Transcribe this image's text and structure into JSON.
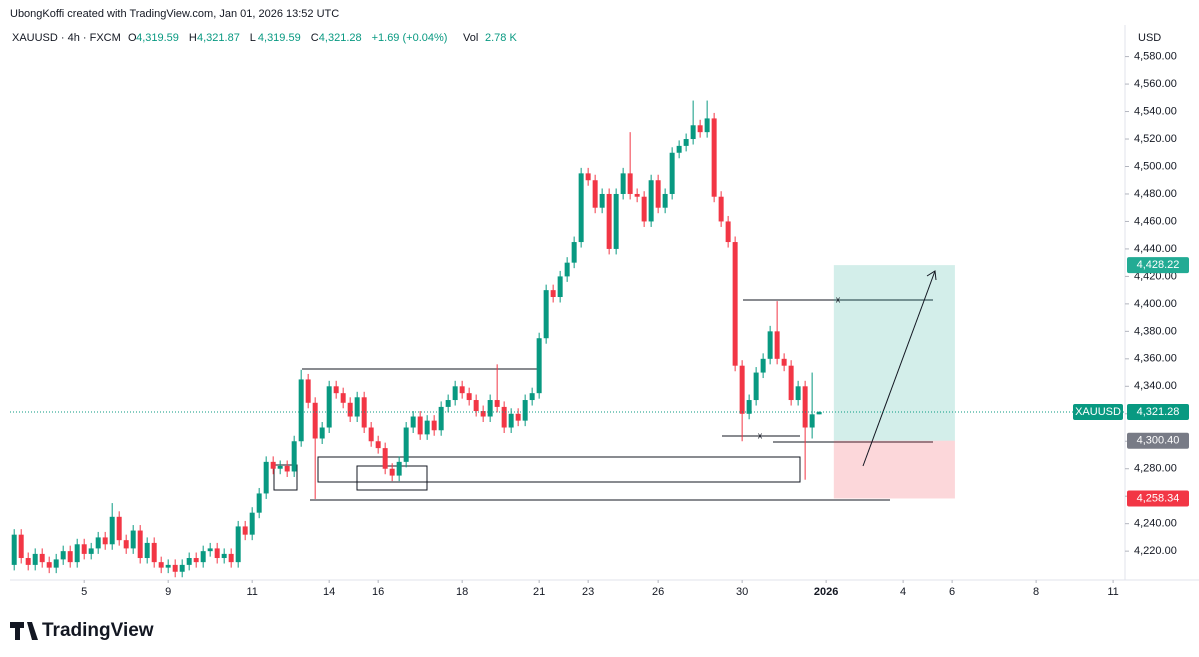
{
  "header": {
    "credit": "UbongKoffi created with TradingView.com, Jan 01, 2026 13:52 UTC",
    "symbol": "XAUUSD · 4h · FXCM",
    "fields": [
      {
        "key": "O",
        "value": "4,319.59"
      },
      {
        "key": "H",
        "value": "4,321.87"
      },
      {
        "key": "L",
        "value": "4,319.59"
      },
      {
        "key": "C",
        "value": "4,321.28"
      }
    ],
    "change": "+1.69 (+0.04%)",
    "vol_key": "Vol",
    "vol": "2.78 K",
    "currency": "USD"
  },
  "footer": {
    "brand": "TradingView"
  },
  "chart_data": {
    "type": "candlestick",
    "up_color": "#089981",
    "down_color": "#f23645",
    "xlim": [
      -0.6,
      158.7
    ],
    "ylim": [
      4199,
      4603
    ],
    "yticks": [
      {
        "value": 4220,
        "label": "4,220.00"
      },
      {
        "value": 4240,
        "label": "4,240.00"
      },
      {
        "value": 4260,
        "label": "4,260.00"
      },
      {
        "value": 4280,
        "label": "4,280.00"
      },
      {
        "value": 4300,
        "label": "4,300.00"
      },
      {
        "value": 4320,
        "label": "4,320.00"
      },
      {
        "value": 4340,
        "label": "4,340.00"
      },
      {
        "value": 4360,
        "label": "4,360.00"
      },
      {
        "value": 4380,
        "label": "4,380.00"
      },
      {
        "value": 4400,
        "label": "4,400.00"
      },
      {
        "value": 4420,
        "label": "4,420.00"
      },
      {
        "value": 4440,
        "label": "4,440.00"
      },
      {
        "value": 4460,
        "label": "4,460.00"
      },
      {
        "value": 4480,
        "label": "4,480.00"
      },
      {
        "value": 4500,
        "label": "4,500.00"
      },
      {
        "value": 4520,
        "label": "4,520.00"
      },
      {
        "value": 4540,
        "label": "4,540.00"
      },
      {
        "value": 4560,
        "label": "4,560.00"
      },
      {
        "value": 4580,
        "label": "4,580.00"
      }
    ],
    "xticks": [
      {
        "value": 10,
        "label": "5"
      },
      {
        "value": 22,
        "label": "9"
      },
      {
        "value": 34,
        "label": "11"
      },
      {
        "value": 45,
        "label": "14"
      },
      {
        "value": 52,
        "label": "16"
      },
      {
        "value": 64,
        "label": "18"
      },
      {
        "value": 75,
        "label": "21"
      },
      {
        "value": 82,
        "label": "23"
      },
      {
        "value": 92,
        "label": "26"
      },
      {
        "value": 104,
        "label": "30"
      },
      {
        "value": 116,
        "label": "2026"
      },
      {
        "value": 127,
        "label": "4"
      },
      {
        "value": 134,
        "label": "6"
      },
      {
        "value": 146,
        "label": "8"
      },
      {
        "value": 157,
        "label": "11"
      }
    ],
    "open": [
      4210,
      4232,
      4215,
      4210,
      4218,
      4212,
      4208,
      4214,
      4220,
      4212,
      4225,
      4218,
      4222,
      4230,
      4225,
      4245,
      4228,
      4222,
      4235,
      4215,
      4226,
      4212,
      4208,
      4210,
      4205,
      4210,
      4215,
      4212,
      4220,
      4222,
      4215,
      4218,
      4212,
      4238,
      4232,
      4248,
      4262,
      4285,
      4280,
      4282,
      4278,
      4300,
      4345,
      4328,
      4302,
      4310,
      4340,
      4335,
      4328,
      4318,
      4332,
      4310,
      4300,
      4295,
      4280,
      4275,
      4285,
      4310,
      4318,
      4305,
      4315,
      4308,
      4325,
      4330,
      4340,
      4335,
      4330,
      4322,
      4318,
      4330,
      4325,
      4310,
      4320,
      4315,
      4330,
      4335,
      4375,
      4410,
      4405,
      4420,
      4430,
      4445,
      4495,
      4490,
      4470,
      4480,
      4440,
      4480,
      4495,
      4480,
      4478,
      4460,
      4490,
      4470,
      4480,
      4510,
      4515,
      4520,
      4530,
      4525,
      4535,
      4478,
      4460,
      4445,
      4355,
      4320,
      4330,
      4350,
      4360,
      4380,
      4360,
      4355,
      4330,
      4340,
      4310,
      4319.59
    ],
    "high": [
      4236,
      4236,
      4219,
      4222,
      4222,
      4216,
      4218,
      4224,
      4224,
      4229,
      4229,
      4226,
      4234,
      4234,
      4255,
      4249,
      4232,
      4239,
      4239,
      4230,
      4230,
      4216,
      4214,
      4214,
      4214,
      4219,
      4219,
      4224,
      4226,
      4226,
      4222,
      4222,
      4242,
      4242,
      4252,
      4266,
      4289,
      4289,
      4286,
      4286,
      4304,
      4352,
      4349,
      4332,
      4314,
      4344,
      4344,
      4339,
      4332,
      4336,
      4336,
      4314,
      4304,
      4299,
      4284,
      4289,
      4314,
      4322,
      4322,
      4319,
      4319,
      4329,
      4334,
      4344,
      4344,
      4339,
      4334,
      4326,
      4334,
      4356,
      4329,
      4324,
      4324,
      4334,
      4339,
      4379,
      4414,
      4414,
      4424,
      4434,
      4449,
      4499,
      4499,
      4494,
      4484,
      4484,
      4484,
      4499,
      4525,
      4484,
      4482,
      4494,
      4494,
      4484,
      4514,
      4519,
      4524,
      4548,
      4534,
      4548,
      4539,
      4482,
      4464,
      4449,
      4359,
      4334,
      4354,
      4364,
      4384,
      4402,
      4364,
      4359,
      4344,
      4344,
      4350,
      4321.87
    ],
    "low": [
      4206,
      4211,
      4206,
      4206,
      4208,
      4204,
      4204,
      4210,
      4208,
      4208,
      4214,
      4214,
      4218,
      4221,
      4221,
      4224,
      4218,
      4218,
      4211,
      4211,
      4208,
      4204,
      4204,
      4201,
      4201,
      4206,
      4208,
      4208,
      4216,
      4211,
      4211,
      4208,
      4208,
      4228,
      4228,
      4244,
      4258,
      4276,
      4276,
      4274,
      4274,
      4296,
      4324,
      4258,
      4298,
      4306,
      4331,
      4324,
      4314,
      4314,
      4306,
      4296,
      4291,
      4276,
      4271,
      4271,
      4281,
      4306,
      4301,
      4301,
      4304,
      4304,
      4321,
      4326,
      4331,
      4326,
      4318,
      4314,
      4314,
      4321,
      4306,
      4306,
      4311,
      4311,
      4326,
      4331,
      4371,
      4401,
      4401,
      4416,
      4426,
      4441,
      4486,
      4466,
      4466,
      4436,
      4436,
      4476,
      4476,
      4474,
      4456,
      4456,
      4466,
      4466,
      4476,
      4506,
      4511,
      4516,
      4521,
      4521,
      4474,
      4456,
      4441,
      4351,
      4300,
      4316,
      4326,
      4346,
      4356,
      4356,
      4351,
      4326,
      4326,
      4272,
      4302,
      4319.59
    ],
    "close": [
      4232,
      4215,
      4210,
      4218,
      4212,
      4208,
      4214,
      4220,
      4212,
      4225,
      4218,
      4222,
      4230,
      4225,
      4245,
      4228,
      4222,
      4235,
      4215,
      4226,
      4212,
      4208,
      4210,
      4205,
      4210,
      4215,
      4212,
      4220,
      4222,
      4215,
      4218,
      4212,
      4238,
      4232,
      4248,
      4262,
      4285,
      4280,
      4282,
      4278,
      4300,
      4345,
      4328,
      4302,
      4310,
      4340,
      4335,
      4328,
      4318,
      4332,
      4310,
      4300,
      4295,
      4280,
      4275,
      4285,
      4310,
      4318,
      4305,
      4315,
      4308,
      4325,
      4330,
      4340,
      4335,
      4330,
      4322,
      4318,
      4330,
      4325,
      4310,
      4320,
      4315,
      4330,
      4335,
      4375,
      4410,
      4405,
      4420,
      4430,
      4445,
      4495,
      4490,
      4470,
      4480,
      4440,
      4480,
      4495,
      4480,
      4478,
      4460,
      4490,
      4470,
      4480,
      4510,
      4515,
      4520,
      4530,
      4525,
      4535,
      4478,
      4460,
      4445,
      4355,
      4320,
      4330,
      4350,
      4360,
      4380,
      4360,
      4355,
      4330,
      4340,
      4310,
      4319.59,
      4321.28
    ],
    "last_price": {
      "symbol": "XAUUSD",
      "value": 4321.28,
      "value_label": "4,321.28",
      "color": "#089981"
    },
    "position": {
      "x_from": 117.1,
      "x_to": 134.4,
      "target": 4428.22,
      "target_label": "4,428.22",
      "target_color": "#22ab94",
      "entry": 4300.4,
      "entry_label": "4,300.40",
      "entry_color": "#787b86",
      "stop": 4258.34,
      "stop_label": "4,258.34",
      "stop_color": "#f23645"
    },
    "markers": [
      "x",
      "x"
    ]
  }
}
